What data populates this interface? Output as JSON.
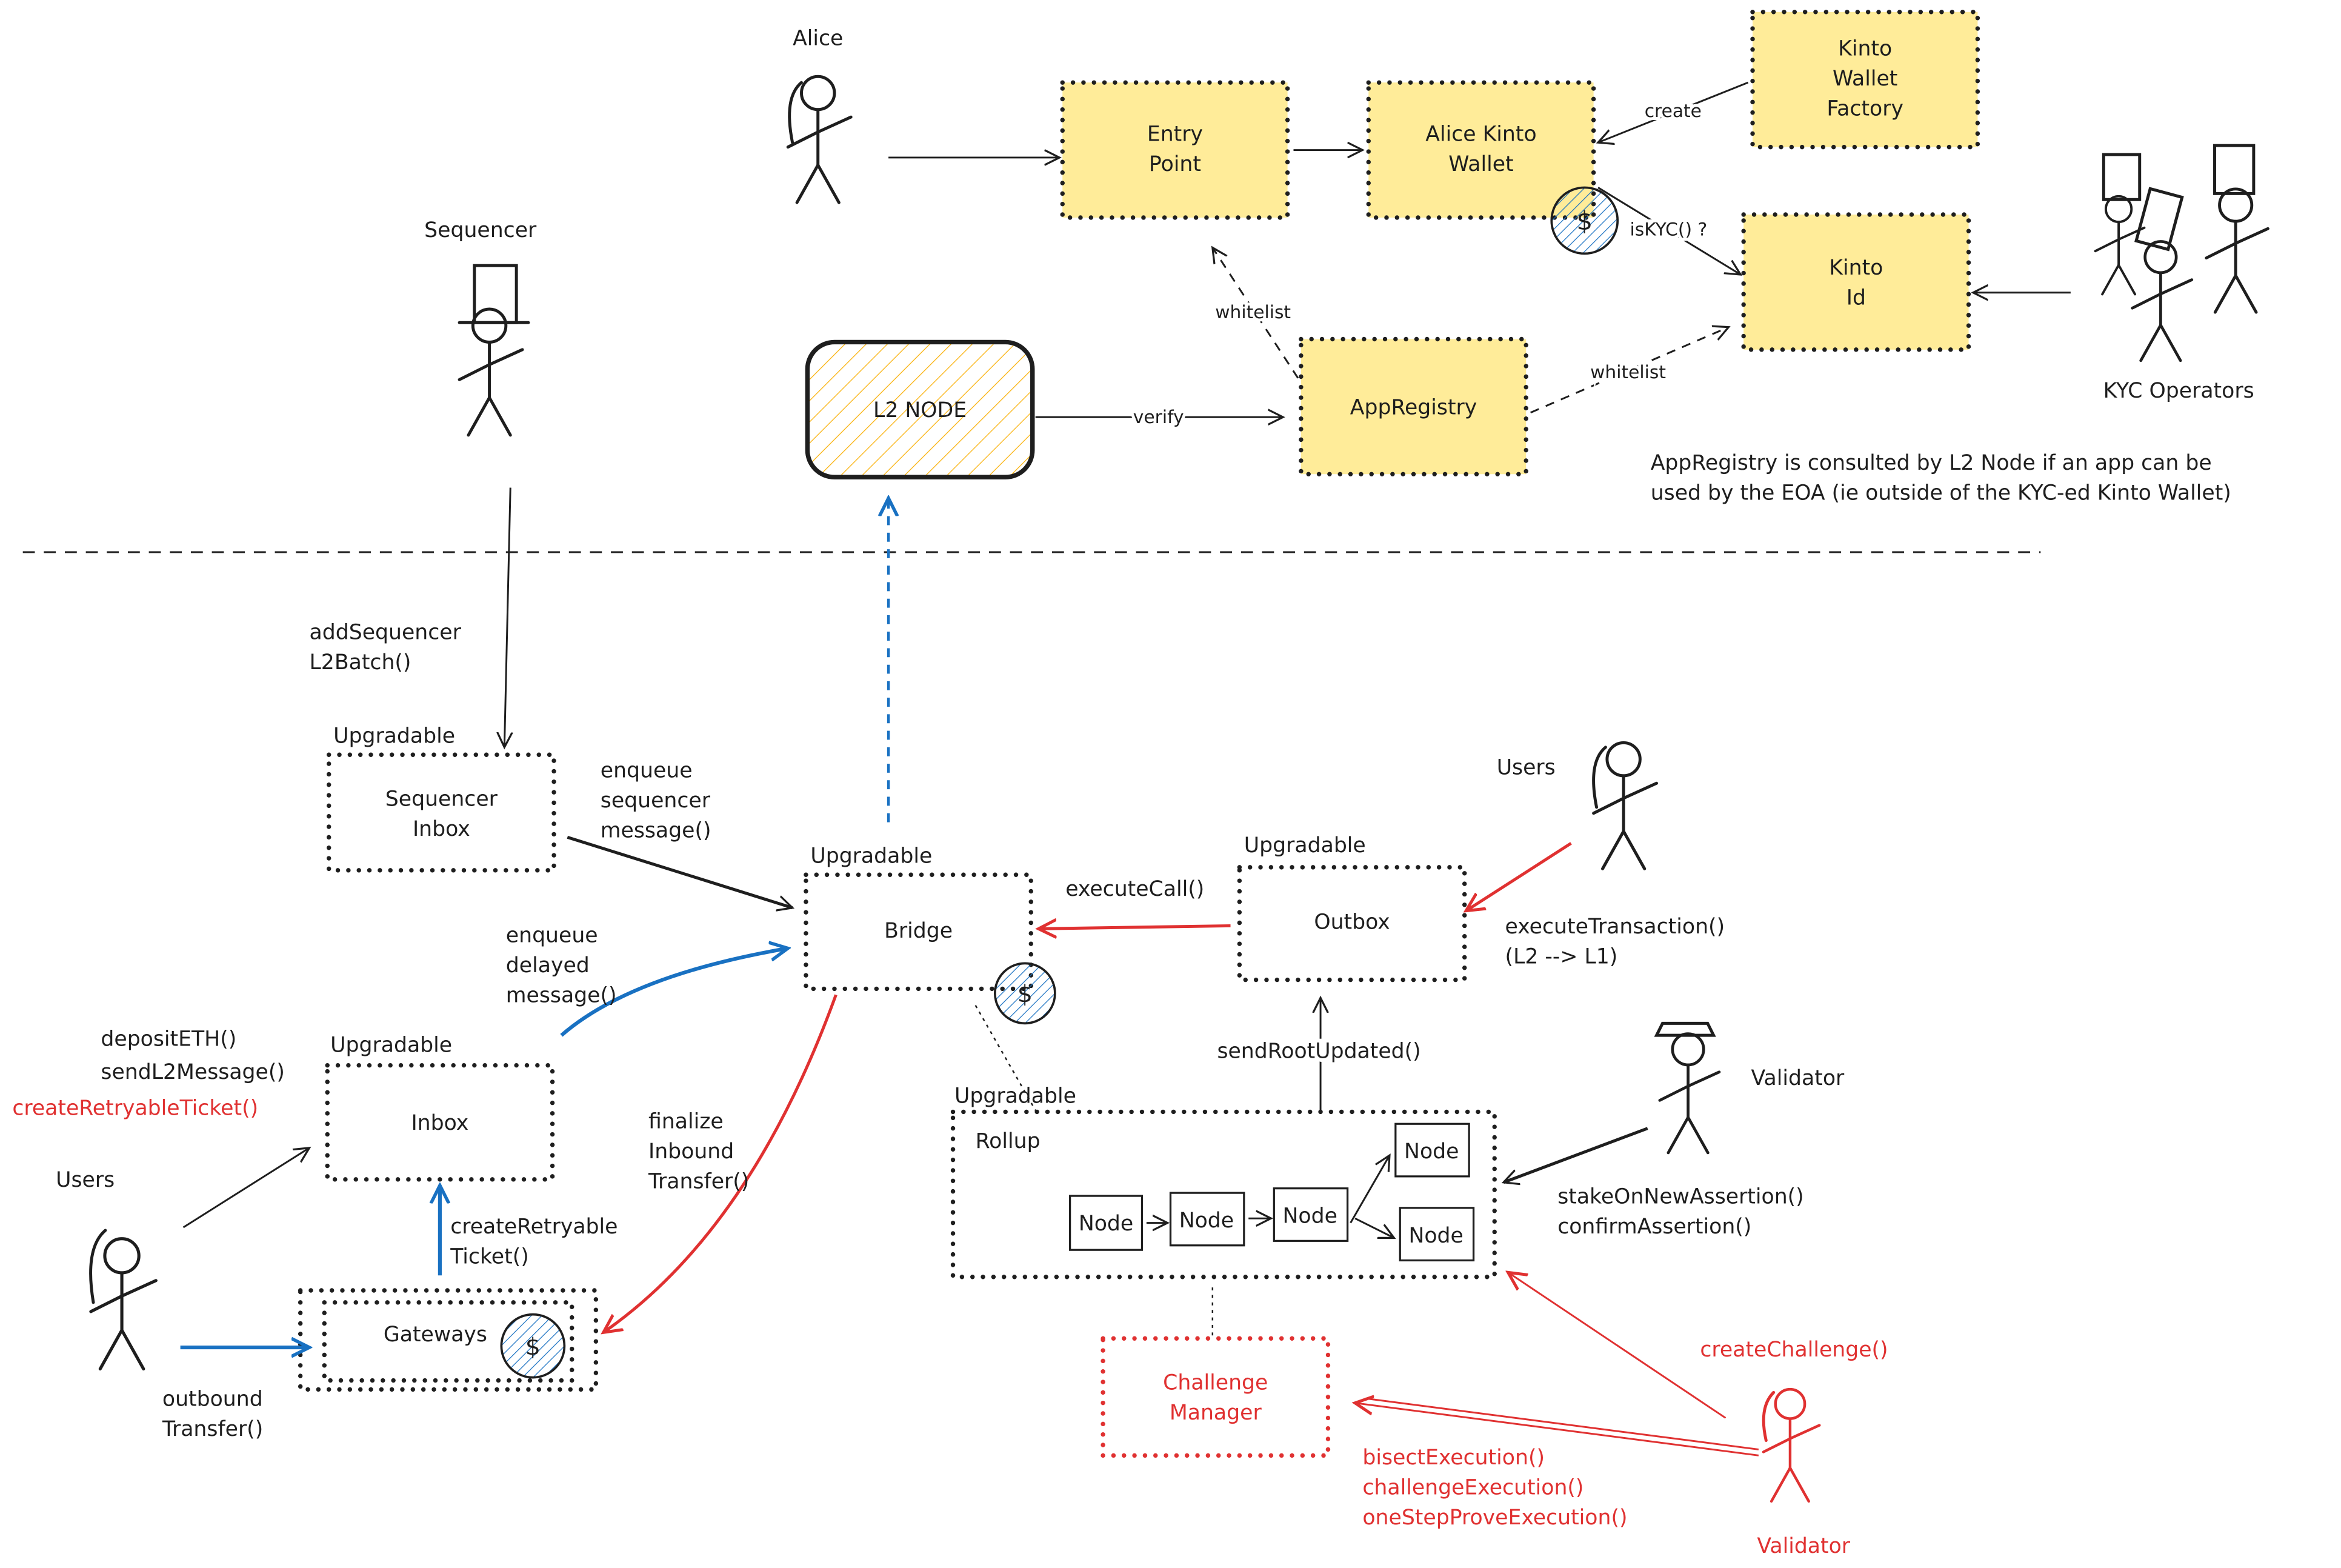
{
  "actors": {
    "alice": "Alice",
    "sequencer": "Sequencer",
    "kyc_operators": "KYC Operators",
    "users_top": "Users",
    "users_left": "Users",
    "validator": "Validator",
    "validator_red": "Validator"
  },
  "kinto": {
    "entry_point": [
      "Entry",
      "Point"
    ],
    "alice_wallet": [
      "Alice Kinto",
      "Wallet"
    ],
    "wallet_factory": [
      "Kinto",
      "Wallet",
      "Factory"
    ],
    "kinto_id": [
      "Kinto",
      "Id"
    ],
    "app_registry": "AppRegistry",
    "l2_node": "L2 NODE",
    "labels": {
      "create": "create",
      "is_kyc": "isKYC() ?",
      "whitelist_entry": "whitelist",
      "whitelist_id": "whitelist",
      "verify": "verify"
    },
    "note": [
      "AppRegistry is consulted by L2 Node if an app can be",
      "used by the EOA (ie outside of the KYC-ed Kinto Wallet)"
    ],
    "coin_symbol": "$"
  },
  "l1": {
    "upgradable": "Upgradable",
    "sequencer_inbox": [
      "Sequencer",
      "Inbox"
    ],
    "bridge": "Bridge",
    "outbox": "Outbox",
    "inbox": "Inbox",
    "gateways": "Gateways",
    "rollup": "Rollup",
    "node": "Node",
    "challenge_manager": [
      "Challenge",
      "Manager"
    ],
    "coin_symbol": "$"
  },
  "labels": {
    "add_sequencer_batch": [
      "addSequencer",
      "L2Batch()"
    ],
    "enqueue_sequencer": [
      "enqueue",
      "sequencer",
      "message()"
    ],
    "enqueue_delayed": [
      "enqueue",
      "delayed",
      "message()"
    ],
    "execute_call": "executeCall()",
    "execute_transaction": [
      "executeTransaction()",
      "(L2 --> L1)"
    ],
    "send_root_updated": "sendRootUpdated()",
    "deposit": [
      "depositETH()",
      "sendL2Message()"
    ],
    "create_retryable_ticket_red": "createRetryableTicket()",
    "create_retryable": [
      "createRetryable",
      "Ticket()"
    ],
    "outbound_transfer": [
      "outbound",
      "Transfer()"
    ],
    "finalize_inbound": [
      "finalize",
      "Inbound",
      "Transfer()"
    ],
    "stake": [
      "stakeOnNewAssertion()",
      "confirmAssertion()"
    ],
    "create_challenge": "createChallenge()",
    "challenge_fns": [
      "bisectExecution()",
      "challengeExecution()",
      "oneStepProveExecution()"
    ]
  },
  "colors": {
    "box_fill": "#ffec99",
    "blue": "#1971c2",
    "red": "#e03131",
    "ink": "#1e1e1e"
  }
}
